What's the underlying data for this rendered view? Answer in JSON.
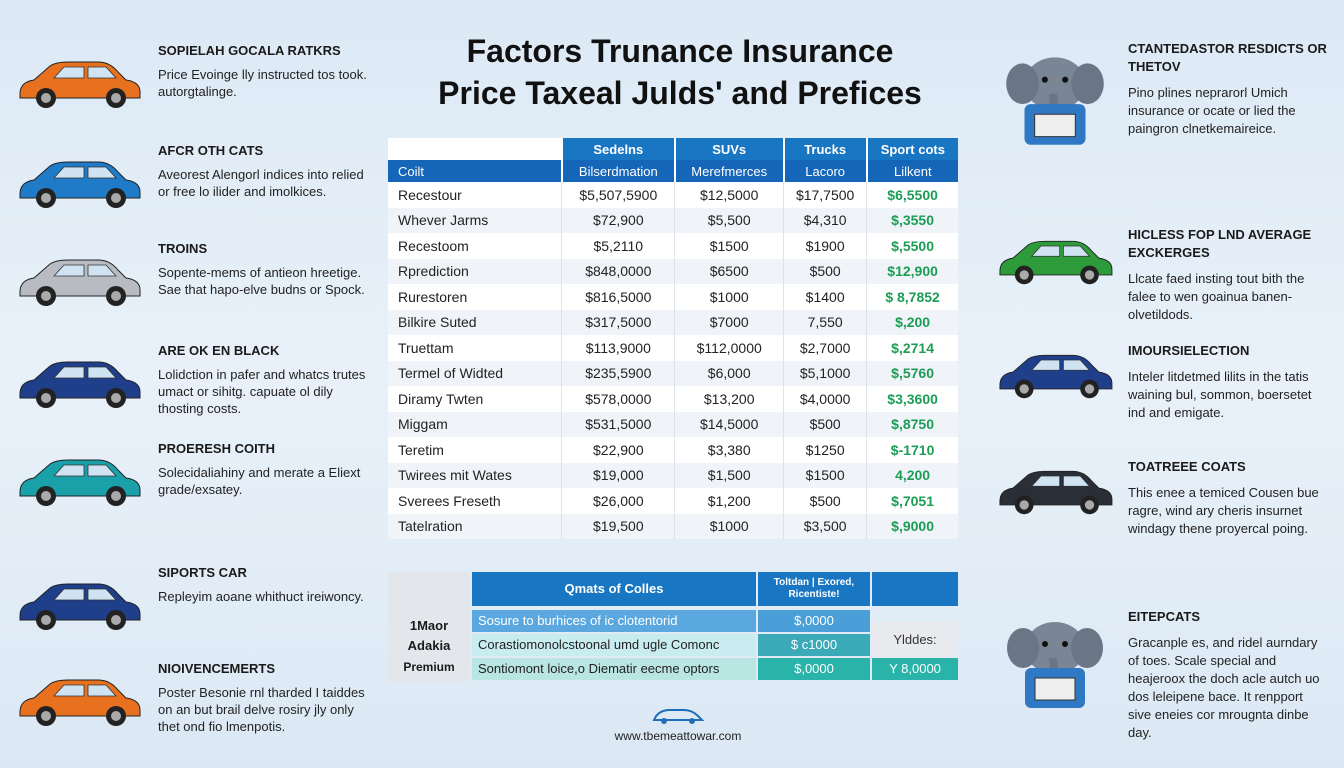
{
  "title": {
    "line1": "Factors Trunance Insurance",
    "line2": "Price Taxeal Julds' and Prefices"
  },
  "left_items": [
    {
      "heading": "SOPIELAH GOCALA RATKRS",
      "text": "Price Evoinge lly instructed tos took. autorgtalinge.",
      "car_color": "#e8711f"
    },
    {
      "heading": "AFCR OTH CATS",
      "text": "Aveorest Alengorl indices into relied or free lo ilider and imolkices.",
      "car_color": "#1f7ac8"
    },
    {
      "heading": "TROINS",
      "text": "Sopente-mems of antieon hreetige. Sae that hapo-elve budns or Spock.",
      "car_color": "#b8bcc2"
    },
    {
      "heading": "ARE OK EN BLACK",
      "text": "Lolidction in pafer and whatcs trutes umact or sihitg. capuate ol dily thosting costs.",
      "car_color": "#1f3f8a"
    },
    {
      "heading": "PROERESH COITH",
      "text": "Solecidaliahiny and merate a Eliext grade/exsatey.",
      "car_color": "#1aa0a8"
    },
    {
      "heading": "SIPORTS CAR",
      "text": "Repleyim aoane whithuct ireiwoncy.",
      "car_color": "#1f3f8a"
    },
    {
      "heading": "NIOIVENCEMERTS",
      "text": "Poster Besonie rnl tharded I taiddes on an but brail delve rosiry jly only thet ond fio lmenpotis.",
      "car_color": "#e8711f"
    }
  ],
  "right_items": [
    {
      "heading": "CTANTEDASTOR RESDICTS OR THETOV",
      "text": "Pino plines neprarorl Umich insurance or ocate or lied the paingron clnetkemaireice.",
      "icon": "elephant-icon"
    },
    {
      "heading": "HICLESS FOP LND AVERAGE EXCKERGES",
      "text": "Llcate faed insting tout bith the falee to wen goainua banen-olvetildods.",
      "car_color": "#2e9b3b"
    },
    {
      "heading": "IMOURSIELECTION",
      "text": "Inteler litdetmed lilits in the tatis waining bul, sommon, boersetet ind and emigate.",
      "car_color": "#1f3f8a"
    },
    {
      "heading": "TOATREEE COATS",
      "text": "This enee a temiced Cousen bue ragre, wind ary cheris insurnet windagy thene proyercal poing.",
      "car_color": "#2a2e36"
    },
    {
      "heading": "EITEPCATS",
      "text": "Gracanple es, and ridel aurndary of toes. Scale special and heajeroox the doch acle autch uo dos leleipene bace. It renpport sive eneies cor mrougnta dinbe day.",
      "icon": "elephant-icon"
    }
  ],
  "main_table": {
    "top_headers": [
      "Sedelns",
      "SUVs",
      "Trucks",
      "Sport cots"
    ],
    "sub_headers": [
      "Coilt",
      "Bilserdmation",
      "Merefmerces",
      "Lacoro",
      "Lilkent"
    ],
    "rows": [
      [
        "Recestour",
        "$5,507,5900",
        "$12,5000",
        "$17,7500",
        "$6,5500"
      ],
      [
        "Whever Jarms",
        "$72,900",
        "$5,500",
        "$4,310",
        "$,3550"
      ],
      [
        "Recestoom",
        "$5,2110",
        "$1500",
        "$1900",
        "$,5500"
      ],
      [
        "Rprediction",
        "$848,0000",
        "$6500",
        "$500",
        "$12,900"
      ],
      [
        "Rurestoren",
        "$816,5000",
        "$1000",
        "$1400",
        "$ 8,7852"
      ],
      [
        "Bilkire Suted",
        "$317,5000",
        "$7000",
        "7,550",
        "$,200"
      ],
      [
        "Truettam",
        "$113,9000",
        "$112,0000",
        "$2,7000",
        "$,2714"
      ],
      [
        "Termel of Widted",
        "$235,5900",
        "$6,000",
        "$5,1000",
        "$,5760"
      ],
      [
        "Diramy Twten",
        "$578,0000",
        "$13,200",
        "$4,0000",
        "$3,3600"
      ],
      [
        "Miggam",
        "$531,5000",
        "$14,5000",
        "$500",
        "$,8750"
      ],
      [
        "Teretim",
        "$22,900",
        "$3,380",
        "$1250",
        "$-1710"
      ],
      [
        "Twirees mit Wates",
        "$19,000",
        "$1,500",
        "$1500",
        "4,200"
      ],
      [
        "Sverees Freseth",
        "$26,000",
        "$1,200",
        "$500",
        "$,7051"
      ],
      [
        "Tatelration",
        "$19,500",
        "$1000",
        "$3,500",
        "$,9000"
      ]
    ]
  },
  "bottom_table": {
    "labels": [
      "1Maor",
      "Adakia",
      "Premium"
    ],
    "header": "Qmats of Colles",
    "header2_line1": "Toltdan | Exored,",
    "header2_line2": "Ricentiste!",
    "rows": [
      {
        "text": "Sosure to burhices of ic clotentorid",
        "value": "$,0000",
        "bg": "#4a9fd8"
      },
      {
        "text": "Corastiomonolcstoonal umd ugle Comonc",
        "value": "$ c1000",
        "bg": "#3aa9b8"
      },
      {
        "text": "Sontiomont loice,o Diematir eecme optors",
        "value": "$,0000",
        "bg": "#2ab3a8"
      }
    ],
    "side_text": "Ylddes:",
    "side_value": "Y 8,0000"
  },
  "footer": {
    "logo_label": "car-logo-icon",
    "url": "www.tbemeattowar.com"
  }
}
